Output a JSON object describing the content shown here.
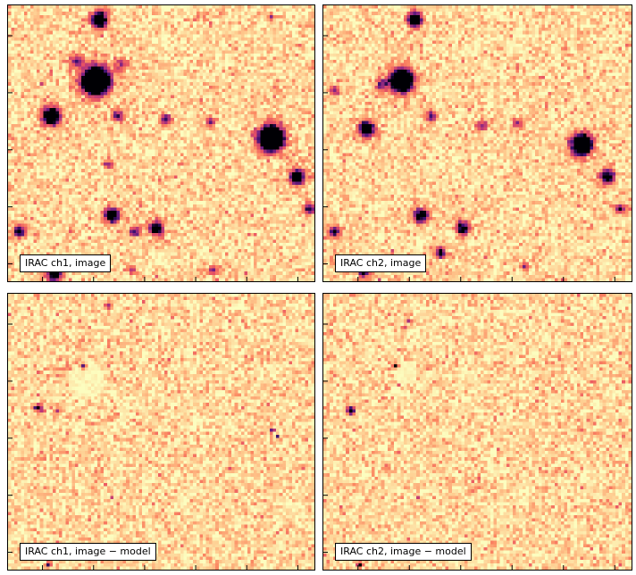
{
  "panels": [
    {
      "id": "ch1-image",
      "label": "IRAC ch1, image"
    },
    {
      "id": "ch2-image",
      "label": "IRAC ch2, image"
    },
    {
      "id": "ch1-residual",
      "label": "IRAC ch1, image − model"
    },
    {
      "id": "ch2-residual",
      "label": "IRAC ch2, image − model"
    }
  ],
  "colormap": {
    "name": "magma-reversed",
    "stops": [
      "#fcfdbf",
      "#fec98d",
      "#fb8761",
      "#e85362",
      "#b73779",
      "#7b2382",
      "#3b0f70",
      "#000004"
    ]
  }
}
